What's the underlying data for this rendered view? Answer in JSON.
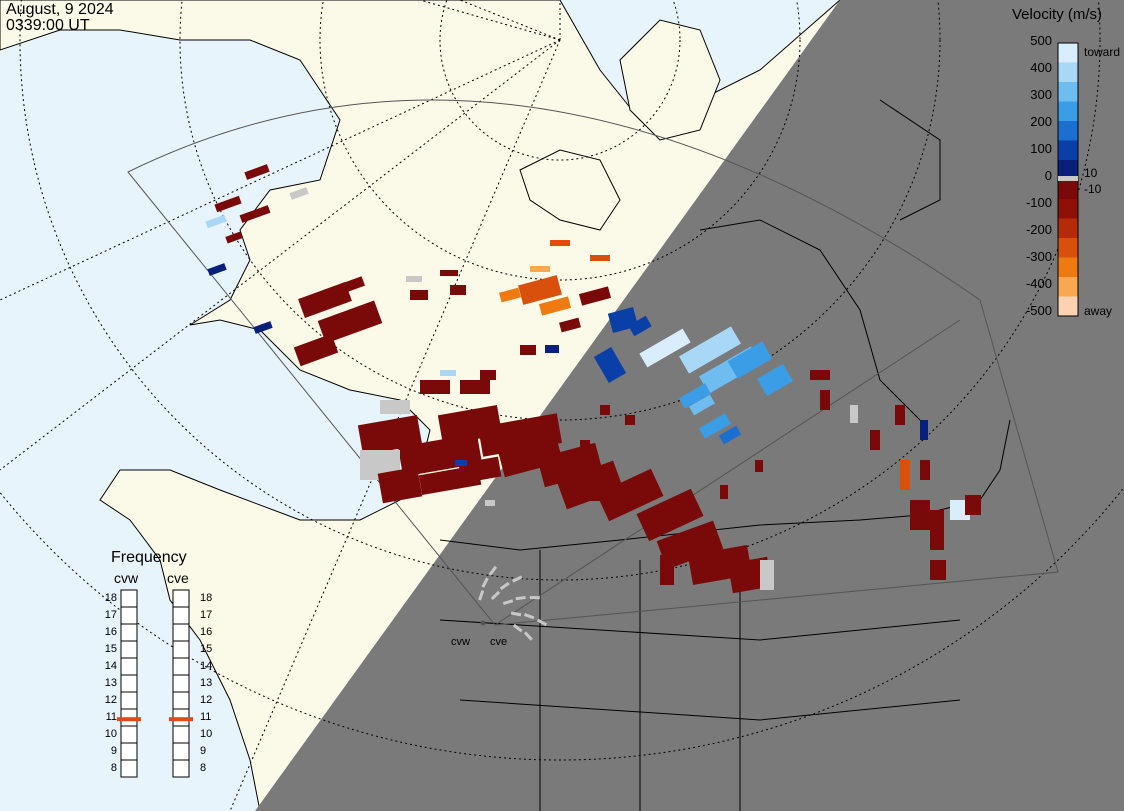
{
  "header": {
    "date": "August, 9 2024",
    "time": "0339:00 UT"
  },
  "colorbar": {
    "title": "Velocity (m/s)",
    "ticks": [
      "500",
      "400",
      "300",
      "200",
      "100",
      "0",
      "-100",
      "-200",
      "-300",
      "-400",
      "-500"
    ],
    "inner_pos": "10",
    "inner_neg": "-10",
    "toward": "toward",
    "away": "away",
    "colors": [
      "#d8eefc",
      "#a9d8f6",
      "#6fbdf0",
      "#3a9de6",
      "#1a6fd0",
      "#0b3fa8",
      "#08207a",
      "#7a0a0a",
      "#8e1006",
      "#b52a08",
      "#d8500c",
      "#f07a12",
      "#f8a850",
      "#fcd2b0"
    ]
  },
  "frequency": {
    "title": "Frequency",
    "radars": [
      "cvw",
      "cve"
    ],
    "levels": [
      "18",
      "17",
      "16",
      "15",
      "14",
      "13",
      "12",
      "11",
      "10",
      "9",
      "8"
    ],
    "cvw_mhz": 10.9,
    "cve_mhz": 10.9,
    "marker_color": "#e04a1a"
  },
  "sites": [
    "cvw",
    "cve"
  ],
  "map_colors": {
    "ocean": "#e8f4fc",
    "land": "#fbfae8",
    "night": "#7a7a7a",
    "scatter": "#c8c8c8"
  }
}
